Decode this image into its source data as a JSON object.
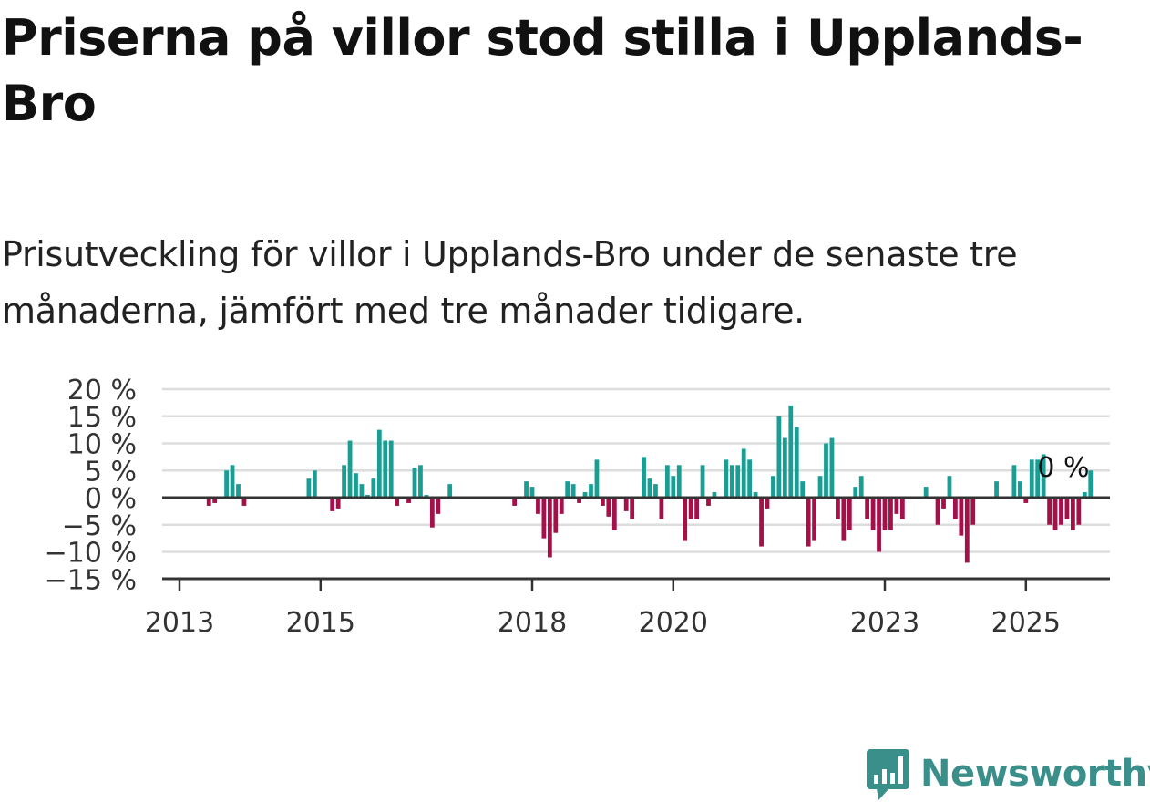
{
  "title": "Priserna på villor stod stilla i Upplands-Bro",
  "subtitle": "Prisutveckling för villor i Upplands-Bro under de senaste tre månaderna, jämfört med tre månader tidigare.",
  "brand": "Newsworthy",
  "colors": {
    "positive": "#1a9e94",
    "negative": "#a3104a",
    "grid": "#dddddd",
    "axis": "#333333",
    "brand": "#3a8f8a"
  },
  "chart_data": {
    "type": "bar",
    "x_start": "2013-01",
    "ylim": [
      -15,
      20
    ],
    "yticks": [
      20,
      15,
      10,
      5,
      0,
      -5,
      -10,
      -15
    ],
    "ytick_labels": [
      "20 %",
      "15 %",
      "10 %",
      "5 %",
      "0 %",
      "−5 %",
      "−10 %",
      "−15 %"
    ],
    "xticks": [
      "2013",
      "2015",
      "2018",
      "2020",
      "2023",
      "2025"
    ],
    "annotation": "0 %",
    "grid": true,
    "values": [
      null,
      null,
      null,
      null,
      null,
      -1.5,
      -1,
      null,
      5,
      6,
      2.5,
      -1.5,
      null,
      null,
      null,
      null,
      null,
      null,
      null,
      null,
      null,
      null,
      3.5,
      5,
      null,
      null,
      -2.5,
      -2,
      6,
      10.5,
      4.5,
      2.5,
      0.5,
      3.5,
      12.5,
      10.5,
      10.5,
      -1.5,
      null,
      -1,
      5.5,
      6,
      0.5,
      -5.5,
      -3,
      null,
      2.5,
      null,
      null,
      null,
      null,
      null,
      null,
      null,
      null,
      null,
      null,
      -1.5,
      null,
      3,
      2,
      -3,
      -7.5,
      -11,
      -6.5,
      -3,
      3,
      2.5,
      -1,
      1,
      2.5,
      7,
      -1.5,
      -3.5,
      -6,
      null,
      -2.5,
      -4,
      null,
      7.5,
      3.5,
      2.5,
      -4,
      6,
      4,
      6,
      -8,
      -4,
      -4,
      6,
      -1.5,
      1,
      null,
      7,
      6,
      6,
      9,
      7,
      1,
      -9,
      -2,
      4,
      15,
      11,
      17,
      13,
      3,
      -9,
      -8,
      4,
      10,
      11,
      -4,
      -8,
      -6,
      2,
      4,
      -4,
      -6,
      -10,
      -6,
      -6,
      -3,
      -4,
      null,
      null,
      null,
      2,
      null,
      -5,
      -2,
      4,
      -4,
      -7,
      -12,
      -5,
      null,
      null,
      null,
      3,
      null,
      null,
      6,
      3,
      -1,
      7,
      7,
      8,
      -5,
      -6,
      -5,
      -4,
      -6,
      -5,
      1,
      5
    ]
  }
}
